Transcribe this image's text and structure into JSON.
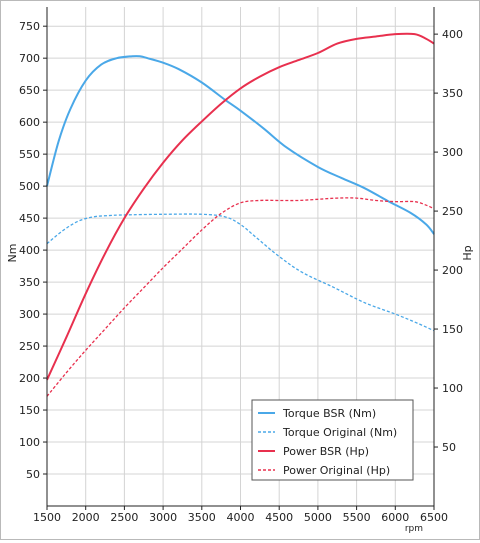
{
  "colors": {
    "background": "#ffffff",
    "grid": "#d4d4d4",
    "axis": "#222222",
    "torque": "#4aa8e8",
    "power": "#e8304e"
  },
  "chart_data": {
    "type": "line",
    "xlabel": "rpm",
    "ylabel_left": "Nm",
    "ylabel_right": "Hp",
    "xlim": [
      1500,
      6500
    ],
    "ylim_left": [
      0,
      780
    ],
    "ylim_right": [
      0,
      423
    ],
    "x_ticks": [
      1500,
      2000,
      2500,
      3000,
      3500,
      4000,
      4500,
      5000,
      5500,
      6000,
      6500
    ],
    "y_ticks_left": [
      50,
      100,
      150,
      200,
      250,
      300,
      350,
      400,
      450,
      500,
      550,
      600,
      650,
      700,
      750
    ],
    "y_ticks_right": [
      50,
      100,
      150,
      200,
      250,
      300,
      350,
      400
    ],
    "grid": true,
    "legend_position": "bottom-right",
    "series": [
      {
        "name": "Torque BSR (Nm)",
        "axis": "left",
        "style": "solid",
        "color": "#4aa8e8",
        "x": [
          1500,
          1650,
          1800,
          2000,
          2200,
          2400,
          2600,
          2700,
          2800,
          3000,
          3200,
          3500,
          3800,
          4000,
          4300,
          4600,
          5000,
          5300,
          5600,
          5900,
          6200,
          6400,
          6500
        ],
        "y": [
          500,
          570,
          620,
          665,
          690,
          700,
          703,
          703,
          700,
          693,
          683,
          662,
          635,
          618,
          590,
          560,
          530,
          513,
          497,
          477,
          458,
          440,
          425
        ]
      },
      {
        "name": "Torque Original (Nm)",
        "axis": "left",
        "style": "dashed",
        "color": "#4aa8e8",
        "x": [
          1500,
          1700,
          1900,
          2100,
          2300,
          2500,
          3000,
          3500,
          3800,
          4000,
          4200,
          4500,
          4800,
          5200,
          5600,
          6000,
          6300,
          6500
        ],
        "y": [
          410,
          430,
          445,
          452,
          454,
          455,
          456,
          456,
          452,
          440,
          420,
          390,
          365,
          342,
          318,
          300,
          285,
          274
        ]
      },
      {
        "name": "Power BSR (Hp)",
        "axis": "right",
        "style": "solid",
        "color": "#e8304e",
        "x": [
          1500,
          1750,
          2000,
          2250,
          2500,
          2750,
          3000,
          3250,
          3500,
          3750,
          4000,
          4250,
          4500,
          4750,
          5000,
          5250,
          5500,
          5750,
          6000,
          6250,
          6400,
          6500
        ],
        "y": [
          107,
          143,
          180,
          214,
          244,
          269,
          291,
          310,
          326,
          341,
          354,
          364,
          372,
          378,
          384,
          392,
          396,
          398,
          400,
          400,
          396,
          392
        ]
      },
      {
        "name": "Power Original (Hp)",
        "axis": "right",
        "style": "dashed",
        "color": "#e8304e",
        "x": [
          1500,
          1750,
          2000,
          2250,
          2500,
          2750,
          3000,
          3250,
          3500,
          3750,
          4000,
          4250,
          4500,
          4750,
          5000,
          5250,
          5500,
          5750,
          6000,
          6250,
          6400,
          6500
        ],
        "y": [
          93,
          113,
          132,
          150,
          168,
          185,
          202,
          218,
          234,
          248,
          257,
          259,
          259,
          259,
          260,
          261,
          261,
          259,
          258,
          258,
          255,
          252
        ]
      }
    ]
  }
}
